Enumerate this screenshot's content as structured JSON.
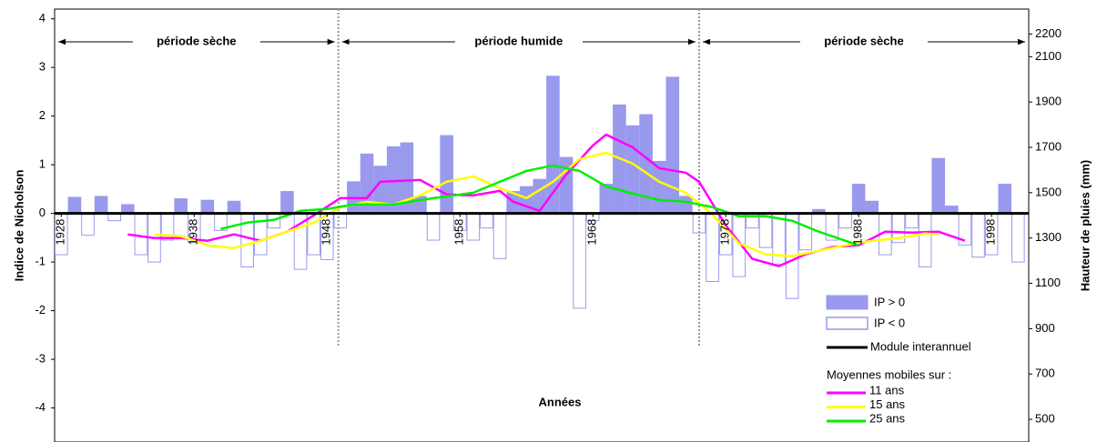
{
  "chart_data": {
    "type": "bar-line",
    "x_label": "Années",
    "y_label": "Indice de Nicholson",
    "y2_label": "Hauteur de pluies (mm)",
    "xlim": [
      1927.5,
      2000.8
    ],
    "xticks": [
      1928,
      1938,
      1948,
      1958,
      1968,
      1978,
      1988,
      1998
    ],
    "ylim": [
      -4.7,
      4.2
    ],
    "yticks": [
      -4,
      -3,
      -2,
      -1,
      0,
      1,
      2,
      3,
      4
    ],
    "y2lim": [
      400,
      2310
    ],
    "y2ticks": [
      500,
      700,
      900,
      1100,
      1300,
      1500,
      1700,
      1900,
      2100,
      2200
    ],
    "x": [
      1928,
      1929,
      1930,
      1931,
      1932,
      1933,
      1934,
      1935,
      1936,
      1937,
      1938,
      1939,
      1940,
      1941,
      1942,
      1943,
      1944,
      1945,
      1946,
      1947,
      1948,
      1949,
      1950,
      1951,
      1952,
      1953,
      1954,
      1955,
      1956,
      1957,
      1958,
      1959,
      1960,
      1961,
      1962,
      1963,
      1964,
      1965,
      1966,
      1967,
      1968,
      1969,
      1970,
      1971,
      1972,
      1973,
      1974,
      1975,
      1976,
      1977,
      1978,
      1979,
      1980,
      1981,
      1982,
      1983,
      1984,
      1985,
      1986,
      1987,
      1988,
      1989,
      1990,
      1991,
      1992,
      1993,
      1994,
      1995,
      1996,
      1997,
      1998,
      1999,
      2000
    ],
    "bars": {
      "positive_name": "IP > 0",
      "negative_name": "IP < 0",
      "color": "#9999ee",
      "values": [
        -0.85,
        0.33,
        -0.45,
        0.35,
        -0.15,
        0.18,
        -0.85,
        -1.0,
        -0.55,
        0.3,
        -0.6,
        0.27,
        -0.35,
        0.25,
        -1.1,
        -0.85,
        -0.3,
        0.45,
        -1.15,
        -0.85,
        -0.95,
        -0.3,
        0.65,
        1.22,
        0.97,
        1.37,
        1.45,
        0.35,
        -0.55,
        1.6,
        -0.35,
        -0.55,
        -0.3,
        -0.93,
        0.45,
        0.55,
        0.7,
        2.82,
        1.15,
        -1.95,
        -0.15,
        0.6,
        2.23,
        1.8,
        2.03,
        1.07,
        2.8,
        0.35,
        -0.4,
        -1.4,
        -0.85,
        -1.3,
        -0.3,
        -0.7,
        -1.05,
        -1.75,
        -0.75,
        0.08,
        -0.55,
        -0.3,
        0.6,
        0.25,
        -0.85,
        -0.6,
        -0.3,
        -1.1,
        1.13,
        0.15,
        -0.65,
        -0.9,
        -0.85,
        0.6,
        -1.0
      ]
    },
    "baseline": {
      "name": "Module interannuel",
      "value": 0,
      "color": "#000000"
    },
    "lines_title": "Moyennes mobiles sur :",
    "lines": [
      {
        "name": "11 ans",
        "color": "#ff00ff",
        "axis": "y2",
        "x": [
          1933,
          1935,
          1937,
          1939,
          1941,
          1943,
          1945,
          1947,
          1949,
          1951,
          1952,
          1955,
          1957,
          1959,
          1961,
          1962,
          1964,
          1966,
          1968,
          1969,
          1971,
          1973,
          1975,
          1976,
          1978,
          1980,
          1982,
          1984,
          1986,
          1988,
          1990,
          1992,
          1994,
          1996
        ],
        "values": [
          1316,
          1300,
          1300,
          1288,
          1316,
          1288,
          1328,
          1400,
          1476,
          1476,
          1548,
          1556,
          1492,
          1488,
          1508,
          1460,
          1420,
          1580,
          1708,
          1756,
          1700,
          1608,
          1588,
          1548,
          1356,
          1208,
          1176,
          1228,
          1260,
          1268,
          1328,
          1324,
          1328,
          1288
        ]
      },
      {
        "name": "15 ans",
        "color": "#ffff00",
        "axis": "y2",
        "x": [
          1935,
          1937,
          1939,
          1941,
          1943,
          1945,
          1947,
          1949,
          1951,
          1953,
          1955,
          1957,
          1959,
          1961,
          1963,
          1965,
          1967,
          1969,
          1971,
          1973,
          1975,
          1977,
          1979,
          1981,
          1983,
          1985,
          1987,
          1989,
          1991,
          1993,
          1994
        ],
        "values": [
          1316,
          1308,
          1268,
          1256,
          1288,
          1328,
          1368,
          1436,
          1460,
          1448,
          1488,
          1548,
          1572,
          1520,
          1476,
          1548,
          1648,
          1676,
          1628,
          1548,
          1500,
          1404,
          1276,
          1228,
          1220,
          1244,
          1268,
          1288,
          1300,
          1320,
          1316
        ]
      },
      {
        "name": "25 ans",
        "color": "#00ee00",
        "axis": "y2",
        "x": [
          1940,
          1942,
          1944,
          1946,
          1948,
          1950,
          1953,
          1956,
          1959,
          1961,
          1963,
          1965,
          1967,
          1969,
          1971,
          1973,
          1975,
          1977,
          1979,
          1981,
          1983,
          1985,
          1987,
          1988
        ],
        "values": [
          1340,
          1368,
          1380,
          1420,
          1428,
          1448,
          1448,
          1476,
          1500,
          1548,
          1596,
          1620,
          1596,
          1528,
          1496,
          1468,
          1460,
          1436,
          1396,
          1396,
          1376,
          1328,
          1288,
          1268
        ]
      }
    ],
    "periods": [
      {
        "label": "période sèche",
        "start": 1927.5,
        "end": 1948.85
      },
      {
        "label": "période humide",
        "start": 1948.85,
        "end": 1976
      },
      {
        "label": "période sèche",
        "start": 1976,
        "end": 2000.8
      }
    ]
  }
}
